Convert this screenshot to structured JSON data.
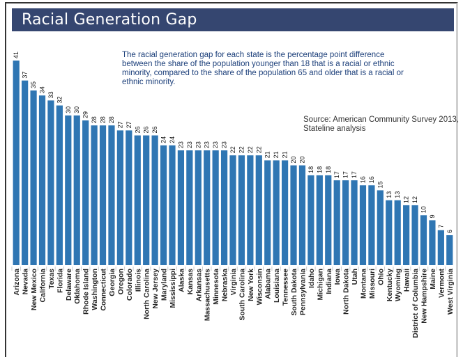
{
  "header": {
    "title": "Racial Generation Gap"
  },
  "description": "The racial generation gap for each state is the percentage point difference between the share of the population younger than 18 that is a racial or ethnic minority, compared to the share of the population 65 and older that is a racial or ethnic minority.",
  "source": "Source: American Community Survey 2013, Stateline analysis",
  "colors": {
    "bar": "#2f76b3",
    "header": "#354670",
    "description_text": "#1c3f7a"
  },
  "chart_data": {
    "type": "bar",
    "title": "Racial Generation Gap",
    "xlabel": "",
    "ylabel": "",
    "ylim": [
      0,
      41
    ],
    "grid": false,
    "legend": "none",
    "categories": [
      "Arizona",
      "Nevada",
      "New Mexico",
      "California",
      "Texas",
      "Florida",
      "Delaware",
      "Oklahoma",
      "Rhode Island",
      "Washington",
      "Connecticut",
      "Georgia",
      "Oregon",
      "Colorado",
      "Illinois",
      "North Carolina",
      "New Jersey",
      "Maryland",
      "Mississippi",
      "Alaska",
      "Kansas",
      "Arkansas",
      "Massachusetts",
      "Minnesota",
      "Nebraska",
      "Virginia",
      "South Carolina",
      "New York",
      "Wisconsin",
      "Alabama",
      "Louisiana",
      "Tennessee",
      "South Dakota",
      "Pennsylvania",
      "Idaho",
      "Michigan",
      "Indiana",
      "Iowa",
      "North Dakota",
      "Utah",
      "Montana",
      "Missouri",
      "Ohio",
      "Kentucky",
      "Wyoming",
      "Hawaii",
      "District of Columbia",
      "New Hampshire",
      "Maine",
      "Vermont",
      "West Virginia"
    ],
    "values": [
      41,
      37,
      35,
      34,
      33,
      32,
      30,
      30,
      29,
      28,
      28,
      28,
      27,
      27,
      26,
      26,
      26,
      24,
      24,
      23,
      23,
      23,
      23,
      23,
      23,
      22,
      22,
      22,
      22,
      21,
      21,
      21,
      20,
      20,
      18,
      18,
      18,
      17,
      17,
      17,
      16,
      16,
      15,
      13,
      13,
      12,
      12,
      10,
      9,
      7,
      6
    ]
  }
}
